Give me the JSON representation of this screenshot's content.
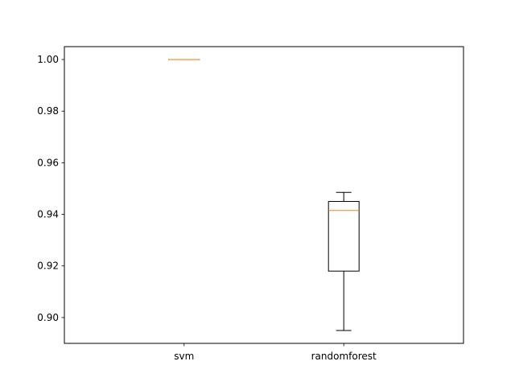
{
  "chart_data": {
    "type": "box",
    "categories": [
      "svm",
      "randomforest"
    ],
    "series": [
      {
        "category": "svm",
        "whisker_low": 1.0,
        "q1": 1.0,
        "median": 1.0,
        "q3": 1.0,
        "whisker_high": 1.0
      },
      {
        "category": "randomforest",
        "whisker_low": 0.895,
        "q1": 0.918,
        "median": 0.9415,
        "q3": 0.945,
        "whisker_high": 0.9485
      }
    ],
    "ylim": [
      0.89,
      1.005
    ],
    "yticks": [
      0.9,
      0.92,
      0.94,
      0.96,
      0.98,
      1.0
    ],
    "ytick_labels": [
      "0.90",
      "0.92",
      "0.94",
      "0.96",
      "0.98",
      "1.00"
    ],
    "grid": false,
    "colors": {
      "box": "#000000",
      "median": "#ff7f0e",
      "axes": "#000000",
      "background": "#ffffff"
    }
  }
}
